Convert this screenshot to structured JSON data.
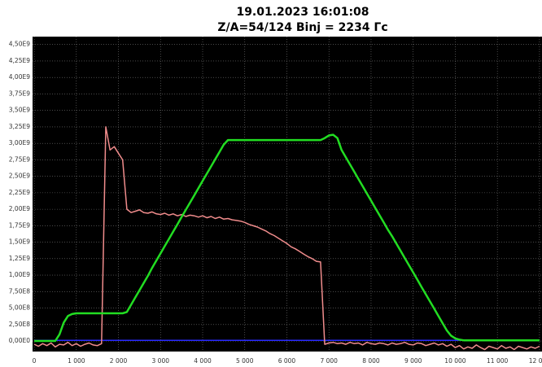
{
  "chart_data": {
    "type": "line",
    "title": "19.01.2023 16:01:08",
    "subtitle": "Z/A=54/124  Binj = 2234 Гс",
    "xlim": [
      -40,
      12060
    ],
    "ylim": [
      -160000000.0,
      4620000000.0
    ],
    "grid": true,
    "xticks": [
      0,
      {
        "value": 1000,
        "label": "1 000"
      },
      {
        "value": 2000,
        "label": "2 000"
      },
      {
        "value": 3000,
        "label": "3 000"
      },
      {
        "value": 4000,
        "label": "4 000"
      },
      {
        "value": 5000,
        "label": "5 000"
      },
      {
        "value": 6000,
        "label": "6 000"
      },
      {
        "value": 7000,
        "label": "7 000"
      },
      {
        "value": 8000,
        "label": "8 000"
      },
      {
        "value": 9000,
        "label": "9 000"
      },
      {
        "value": 10000,
        "label": "10 000"
      },
      {
        "value": 11000,
        "label": "11 000"
      },
      {
        "value": 12000,
        "label": "12 000"
      }
    ],
    "yticks": [
      {
        "value": 0,
        "label": "0,00E0"
      },
      {
        "value": 250000000.0,
        "label": "2,50E8"
      },
      {
        "value": 500000000.0,
        "label": "5,00E8"
      },
      {
        "value": 750000000.0,
        "label": "7,50E8"
      },
      {
        "value": 1000000000.0,
        "label": "1,00E9"
      },
      {
        "value": 1250000000.0,
        "label": "1,25E9"
      },
      {
        "value": 1500000000.0,
        "label": "1,50E9"
      },
      {
        "value": 1750000000.0,
        "label": "1,75E9"
      },
      {
        "value": 2000000000.0,
        "label": "2,00E9"
      },
      {
        "value": 2250000000.0,
        "label": "2,25E9"
      },
      {
        "value": 2500000000.0,
        "label": "2,50E9"
      },
      {
        "value": 2750000000.0,
        "label": "2,75E9"
      },
      {
        "value": 3000000000.0,
        "label": "3,00E9"
      },
      {
        "value": 3250000000.0,
        "label": "3,25E9"
      },
      {
        "value": 3500000000.0,
        "label": "3,50E9"
      },
      {
        "value": 3750000000.0,
        "label": "3,75E9"
      },
      {
        "value": 4000000000.0,
        "label": "4,00E9"
      },
      {
        "value": 4250000000.0,
        "label": "4,25E9"
      },
      {
        "value": 4500000000.0,
        "label": "4,50E9"
      }
    ],
    "x": [
      0,
      100,
      200,
      300,
      400,
      500,
      600,
      700,
      800,
      900,
      1000,
      1100,
      1200,
      1300,
      1400,
      1500,
      1600,
      1700,
      1800,
      1900,
      2000,
      2100,
      2200,
      2300,
      2400,
      2500,
      2600,
      2700,
      2800,
      2900,
      3000,
      3100,
      3200,
      3300,
      3400,
      3500,
      3600,
      3700,
      3800,
      3900,
      4000,
      4100,
      4200,
      4300,
      4400,
      4500,
      4600,
      4700,
      4800,
      4900,
      5000,
      5100,
      5200,
      5300,
      5400,
      5500,
      5600,
      5700,
      5800,
      5900,
      6000,
      6100,
      6200,
      6300,
      6400,
      6500,
      6600,
      6700,
      6800,
      6900,
      7000,
      7100,
      7200,
      7300,
      7400,
      7500,
      7600,
      7700,
      7800,
      7900,
      8000,
      8100,
      8200,
      8300,
      8400,
      8500,
      8600,
      8700,
      8800,
      8900,
      9000,
      9100,
      9200,
      9300,
      9400,
      9500,
      9600,
      9700,
      9800,
      9900,
      10000,
      10100,
      10200,
      10300,
      10400,
      10500,
      10600,
      10700,
      10800,
      10900,
      11000,
      11100,
      11200,
      11300,
      11400,
      11500,
      11600,
      11700,
      11800,
      11900,
      12000
    ],
    "series": [
      {
        "color": "#2a2aff",
        "x": [
          0,
          12000
        ],
        "values": [
          10000000.0,
          10000000.0
        ]
      },
      {
        "color": "#f08c8c",
        "values": [
          -50000000.0,
          -80000000.0,
          -40000000.0,
          -70000000.0,
          -30000000.0,
          -90000000.0,
          -50000000.0,
          -60000000.0,
          -20000000.0,
          -70000000.0,
          -40000000.0,
          -80000000.0,
          -50000000.0,
          -30000000.0,
          -60000000.0,
          -70000000.0,
          -40000000.0,
          3250000000.0,
          2900000000.0,
          2950000000.0,
          2850000000.0,
          2750000000.0,
          2000000000.0,
          1950000000.0,
          1970000000.0,
          1990000000.0,
          1950000000.0,
          1940000000.0,
          1960000000.0,
          1930000000.0,
          1920000000.0,
          1940000000.0,
          1910000000.0,
          1930000000.0,
          1900000000.0,
          1920000000.0,
          1890000000.0,
          1910000000.0,
          1900000000.0,
          1880000000.0,
          1900000000.0,
          1870000000.0,
          1890000000.0,
          1860000000.0,
          1880000000.0,
          1850000000.0,
          1860000000.0,
          1840000000.0,
          1830000000.0,
          1820000000.0,
          1800000000.0,
          1770000000.0,
          1750000000.0,
          1730000000.0,
          1700000000.0,
          1670000000.0,
          1630000000.0,
          1600000000.0,
          1560000000.0,
          1520000000.0,
          1480000000.0,
          1430000000.0,
          1400000000.0,
          1360000000.0,
          1320000000.0,
          1280000000.0,
          1250000000.0,
          1210000000.0,
          1200000000.0,
          -50000000.0,
          -30000000.0,
          -20000000.0,
          -40000000.0,
          -30000000.0,
          -50000000.0,
          -20000000.0,
          -40000000.0,
          -30000000.0,
          -60000000.0,
          -20000000.0,
          -40000000.0,
          -50000000.0,
          -30000000.0,
          -40000000.0,
          -60000000.0,
          -30000000.0,
          -50000000.0,
          -40000000.0,
          -20000000.0,
          -50000000.0,
          -60000000.0,
          -30000000.0,
          -40000000.0,
          -70000000.0,
          -50000000.0,
          -30000000.0,
          -60000000.0,
          -40000000.0,
          -80000000.0,
          -50000000.0,
          -100000000.0,
          -70000000.0,
          -120000000.0,
          -90000000.0,
          -110000000.0,
          -60000000.0,
          -100000000.0,
          -130000000.0,
          -80000000.0,
          -100000000.0,
          -120000000.0,
          -70000000.0,
          -110000000.0,
          -90000000.0,
          -130000000.0,
          -80000000.0,
          -100000000.0,
          -120000000.0,
          -90000000.0,
          -110000000.0,
          -80000000.0
        ]
      },
      {
        "color": "#22dd22",
        "values": [
          0,
          0,
          0,
          0,
          0,
          0,
          100000000.0,
          280000000.0,
          380000000.0,
          410000000.0,
          420000000.0,
          420000000.0,
          420000000.0,
          420000000.0,
          420000000.0,
          420000000.0,
          420000000.0,
          420000000.0,
          420000000.0,
          420000000.0,
          420000000.0,
          420000000.0,
          440000000.0,
          550000000.0,
          660000000.0,
          770000000.0,
          880000000.0,
          990000000.0,
          1110000000.0,
          1220000000.0,
          1330000000.0,
          1440000000.0,
          1550000000.0,
          1660000000.0,
          1770000000.0,
          1880000000.0,
          1990000000.0,
          2100000000.0,
          2210000000.0,
          2320000000.0,
          2430000000.0,
          2540000000.0,
          2650000000.0,
          2760000000.0,
          2870000000.0,
          2980000000.0,
          3050000000.0,
          3050000000.0,
          3050000000.0,
          3050000000.0,
          3050000000.0,
          3050000000.0,
          3050000000.0,
          3050000000.0,
          3050000000.0,
          3050000000.0,
          3050000000.0,
          3050000000.0,
          3050000000.0,
          3050000000.0,
          3050000000.0,
          3050000000.0,
          3050000000.0,
          3050000000.0,
          3050000000.0,
          3050000000.0,
          3050000000.0,
          3050000000.0,
          3050000000.0,
          3080000000.0,
          3120000000.0,
          3130000000.0,
          3080000000.0,
          2900000000.0,
          2790000000.0,
          2680000000.0,
          2570000000.0,
          2460000000.0,
          2350000000.0,
          2240000000.0,
          2130000000.0,
          2020000000.0,
          1910000000.0,
          1800000000.0,
          1690000000.0,
          1590000000.0,
          1480000000.0,
          1370000000.0,
          1260000000.0,
          1150000000.0,
          1040000000.0,
          930000000.0,
          820000000.0,
          710000000.0,
          600000000.0,
          490000000.0,
          380000000.0,
          270000000.0,
          160000000.0,
          80000000.0,
          40000000.0,
          20000000.0,
          10000000.0,
          10000000.0,
          10000000.0,
          10000000.0,
          10000000.0,
          10000000.0,
          10000000.0,
          10000000.0,
          10000000.0,
          10000000.0,
          10000000.0,
          10000000.0,
          10000000.0,
          10000000.0,
          10000000.0,
          10000000.0,
          10000000.0,
          10000000.0,
          10000000.0
        ]
      }
    ]
  }
}
